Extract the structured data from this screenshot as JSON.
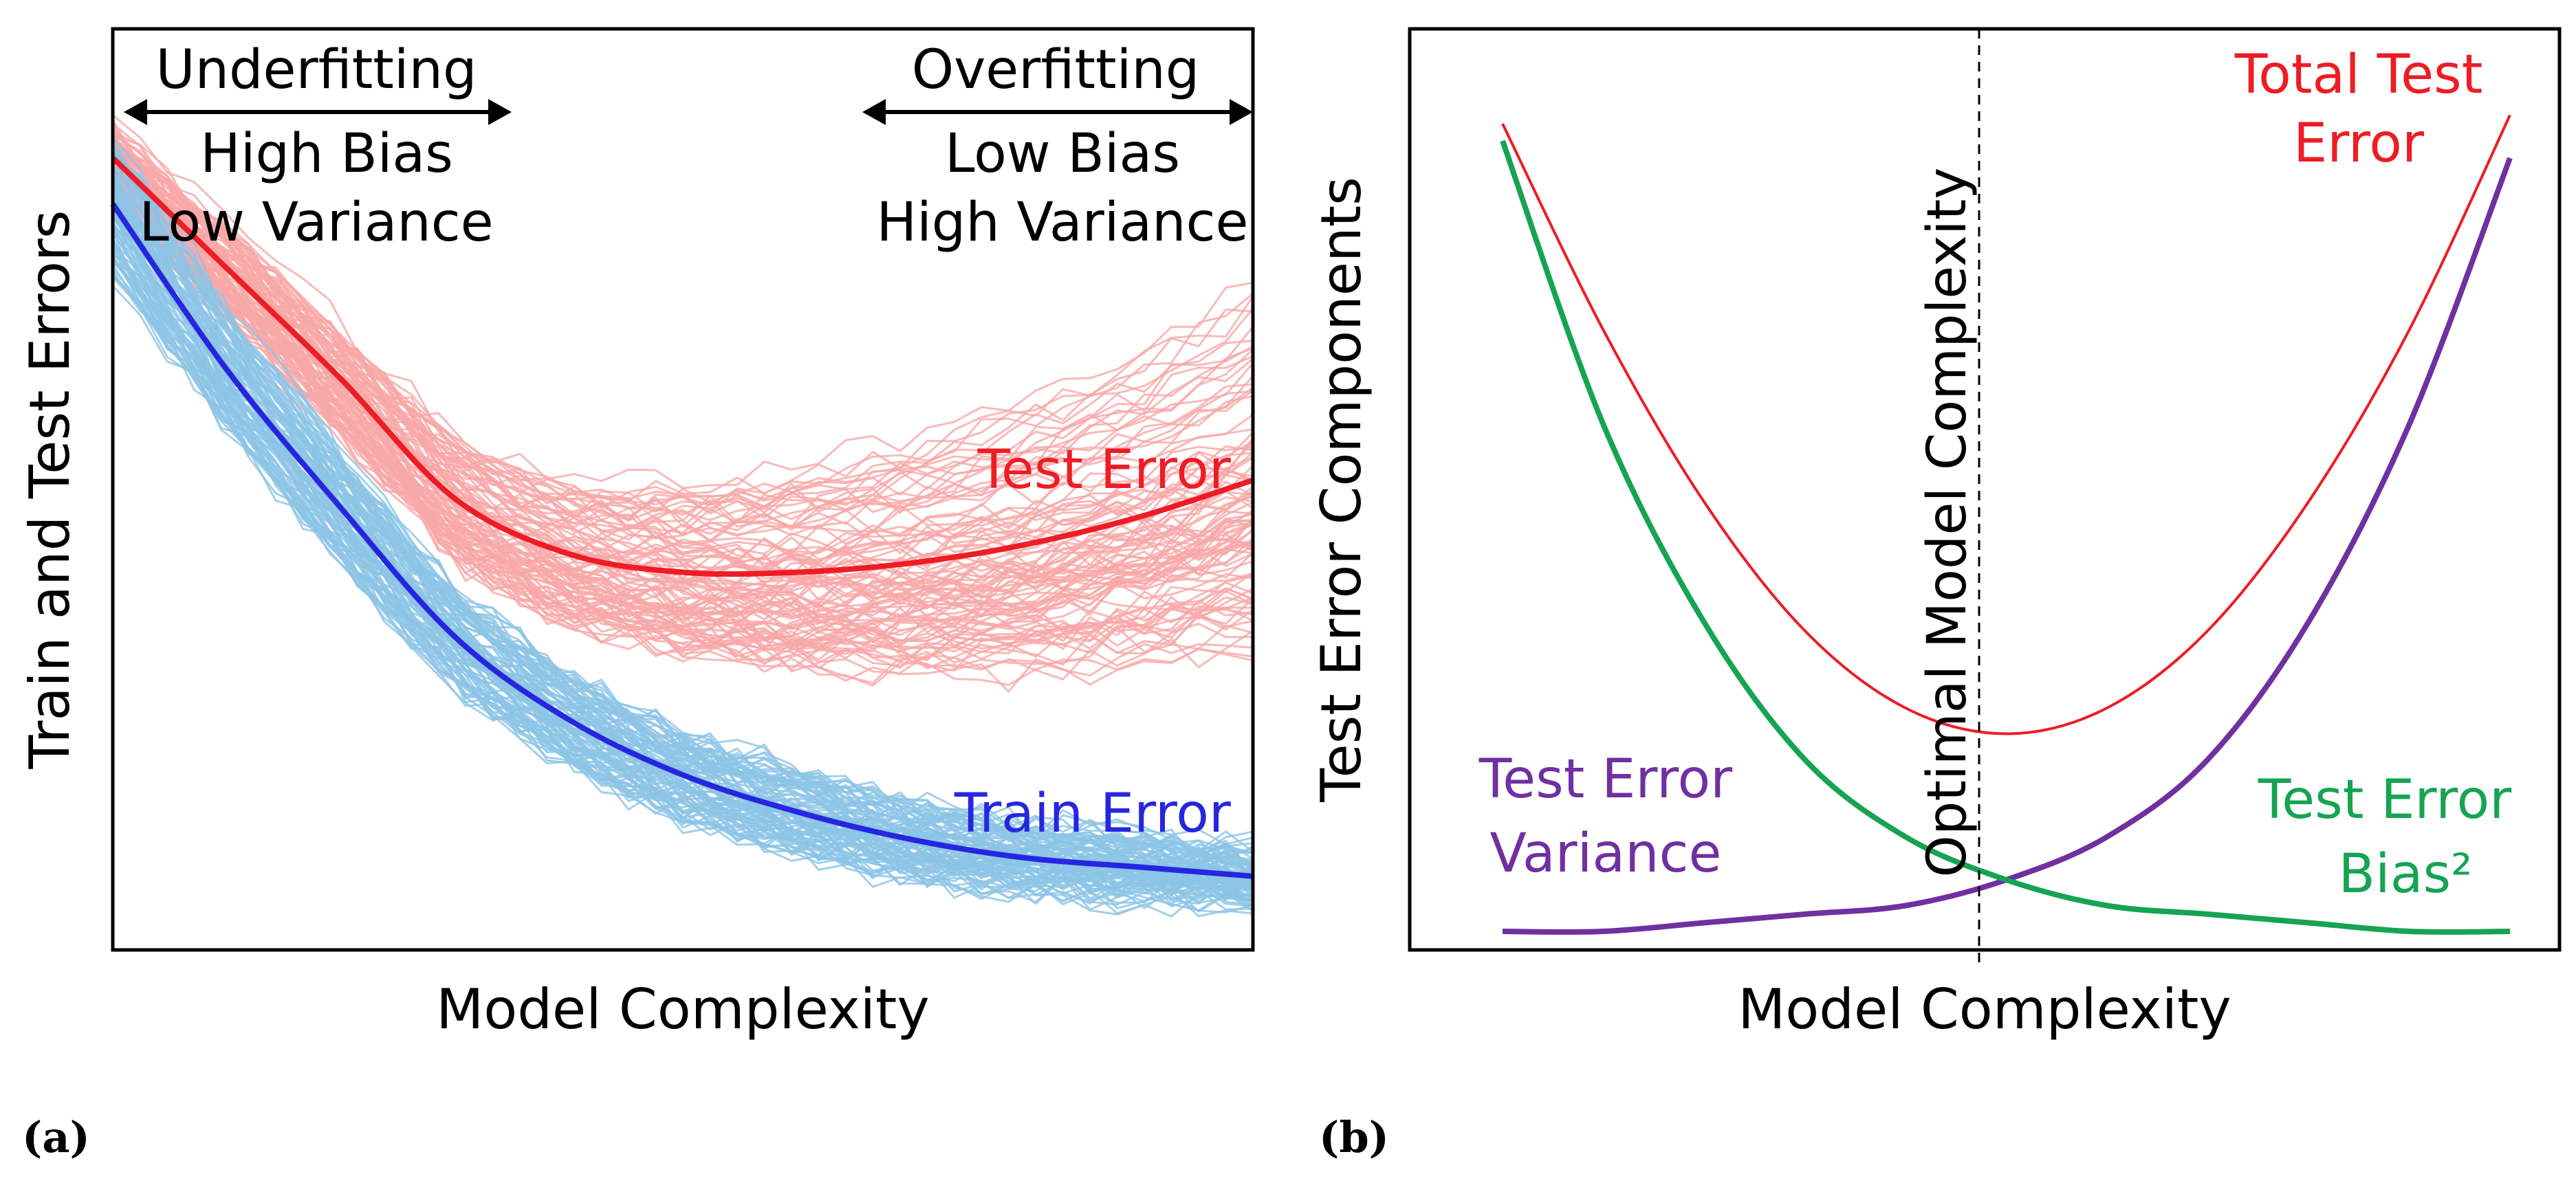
{
  "panels": [
    {
      "sublabel": "(a)",
      "chart_data": {
        "type": "line",
        "xlabel": "Model Complexity",
        "ylabel": "Train and Test Errors",
        "x_ticks_shown": false,
        "y_ticks_shown": false,
        "grid": false,
        "x": [
          0,
          0.1,
          0.2,
          0.3,
          0.4,
          0.5,
          0.6,
          0.7,
          0.8,
          0.9,
          1.0
        ],
        "series": [
          {
            "name": "Test Error",
            "color": "#ee1c25",
            "values": [
              0.86,
              0.74,
              0.62,
              0.49,
              0.43,
              0.41,
              0.41,
              0.42,
              0.44,
              0.47,
              0.51
            ]
          },
          {
            "name": "Train Error",
            "color": "#2626e0",
            "values": [
              0.81,
              0.63,
              0.48,
              0.34,
              0.25,
              0.19,
              0.15,
              0.12,
              0.1,
              0.09,
              0.08
            ]
          }
        ],
        "sample_curves": [
          {
            "group": "test",
            "count": 100,
            "color": "#f9a7a7"
          },
          {
            "group": "train",
            "count": 100,
            "color": "#8cc4e6"
          }
        ],
        "annotations": [
          {
            "lines": [
              "Underfitting"
            ],
            "arrow": "both"
          },
          {
            "lines": [
              "High Bias",
              "Low Variance"
            ]
          },
          {
            "lines": [
              "Overfitting"
            ],
            "arrow": "both"
          },
          {
            "lines": [
              "Low Bias",
              "High Variance"
            ]
          }
        ]
      }
    },
    {
      "sublabel": "(b)",
      "chart_data": {
        "type": "line",
        "xlabel": "Model Complexity",
        "ylabel": "Test Error Components",
        "x_ticks_shown": false,
        "y_ticks_shown": false,
        "grid": false,
        "x": [
          0,
          0.1,
          0.2,
          0.3,
          0.4,
          0.5,
          0.6,
          0.7,
          0.8,
          0.9,
          1.0
        ],
        "series": [
          {
            "name": "Total Test Error",
            "label_lines": [
              "Total Test",
              "Error"
            ],
            "color": "#ee1c25",
            "values": [
              0.96,
              0.72,
              0.52,
              0.37,
              0.28,
              0.25,
              0.28,
              0.37,
              0.52,
              0.72,
              0.97
            ]
          },
          {
            "name": "Test Error Variance",
            "label_lines": [
              "Test Error",
              "Variance"
            ],
            "color": "#7030a0",
            "values": [
              0.02,
              0.02,
              0.03,
              0.04,
              0.05,
              0.08,
              0.13,
              0.22,
              0.38,
              0.61,
              0.92
            ]
          },
          {
            "name": "Test Error Bias²",
            "label_lines": [
              "Test Error",
              "Bias²"
            ],
            "color": "#16a452",
            "values": [
              0.94,
              0.61,
              0.38,
              0.22,
              0.13,
              0.08,
              0.05,
              0.04,
              0.03,
              0.02,
              0.02
            ]
          }
        ],
        "vertical_line": {
          "x": 0.5,
          "label": "Optimal Model Complexity",
          "style": "dashed"
        }
      }
    }
  ]
}
